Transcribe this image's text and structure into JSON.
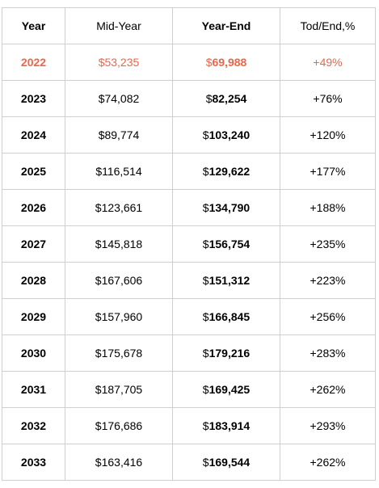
{
  "table": {
    "headers": [
      "Year",
      "Mid-Year",
      "Year-End",
      "Tod/End,%"
    ],
    "rows": [
      {
        "year": "2022",
        "mid": "$53,235",
        "end_prefix": "$",
        "end_value": "69,988",
        "pct": "+49%"
      },
      {
        "year": "2023",
        "mid": "$74,082",
        "end_prefix": "$",
        "end_value": "82,254",
        "pct": "+76%"
      },
      {
        "year": "2024",
        "mid": "$89,774",
        "end_prefix": "$",
        "end_value": "103,240",
        "pct": "+120%"
      },
      {
        "year": "2025",
        "mid": "$116,514",
        "end_prefix": "$",
        "end_value": "129,622",
        "pct": "+177%"
      },
      {
        "year": "2026",
        "mid": "$123,661",
        "end_prefix": "$",
        "end_value": "134,790",
        "pct": "+188%"
      },
      {
        "year": "2027",
        "mid": "$145,818",
        "end_prefix": "$",
        "end_value": "156,754",
        "pct": "+235%"
      },
      {
        "year": "2028",
        "mid": "$167,606",
        "end_prefix": "$",
        "end_value": "151,312",
        "pct": "+223%"
      },
      {
        "year": "2029",
        "mid": "$157,960",
        "end_prefix": "$",
        "end_value": "166,845",
        "pct": "+256%"
      },
      {
        "year": "2030",
        "mid": "$175,678",
        "end_prefix": "$",
        "end_value": "179,216",
        "pct": "+283%"
      },
      {
        "year": "2031",
        "mid": "$187,705",
        "end_prefix": "$",
        "end_value": "169,425",
        "pct": "+262%"
      },
      {
        "year": "2032",
        "mid": "$176,686",
        "end_prefix": "$",
        "end_value": "183,914",
        "pct": "+293%"
      },
      {
        "year": "2033",
        "mid": "$163,416",
        "end_prefix": "$",
        "end_value": "169,544",
        "pct": "+262%"
      }
    ]
  },
  "colors": {
    "highlight_row_text": "#e8674c",
    "border": "#cfcfcf"
  }
}
